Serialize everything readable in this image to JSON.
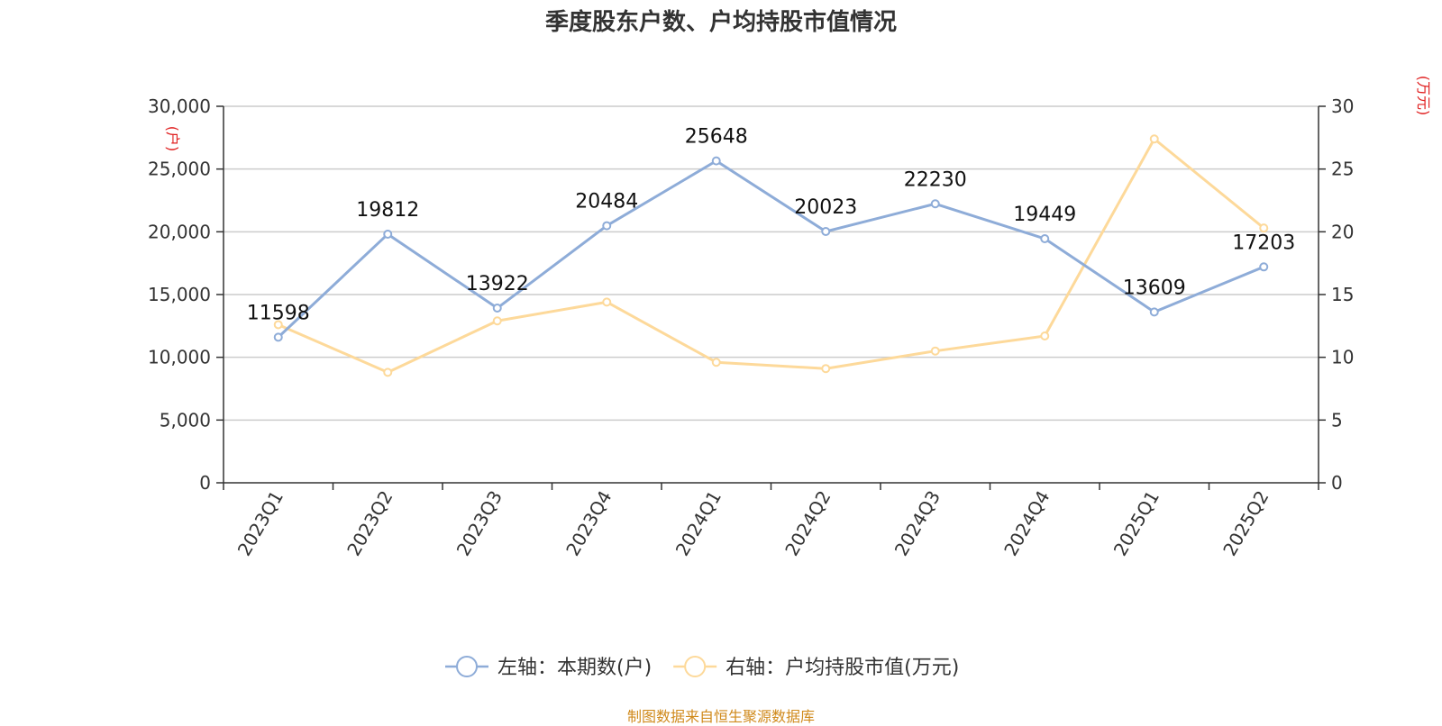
{
  "title": "季度股东户数、户均持股市值情况",
  "source": "制图数据来自恒生聚源数据库",
  "chart_data": {
    "type": "line",
    "categories": [
      "2023Q1",
      "2023Q2",
      "2023Q3",
      "2023Q4",
      "2024Q1",
      "2024Q2",
      "2024Q3",
      "2024Q4",
      "2025Q1",
      "2025Q2"
    ],
    "left_axis": {
      "unit": "(户)",
      "range": [
        0,
        30000
      ],
      "ticks": [
        0,
        5000,
        10000,
        15000,
        20000,
        25000,
        30000
      ],
      "tick_labels": [
        "0",
        "5,000",
        "10,000",
        "15,000",
        "20,000",
        "25,000",
        "30,000"
      ]
    },
    "right_axis": {
      "unit": "(万元)",
      "range": [
        0,
        30
      ],
      "ticks": [
        0,
        5,
        10,
        15,
        20,
        25,
        30
      ],
      "tick_labels": [
        "0",
        "5",
        "10",
        "15",
        "20",
        "25",
        "30"
      ]
    },
    "series": [
      {
        "name": "左轴：本期数(户)",
        "axis": "left",
        "color": "#8eacd8",
        "values": [
          11598,
          19812,
          13922,
          20484,
          25648,
          20023,
          22230,
          19449,
          13609,
          17203
        ],
        "labels": [
          "11598",
          "19812",
          "13922",
          "20484",
          "25648",
          "20023",
          "22230",
          "19449",
          "13609",
          "17203"
        ]
      },
      {
        "name": "右轴：户均持股市值(万元)",
        "axis": "right",
        "color": "#fdd99a",
        "values": [
          12.6,
          8.8,
          12.9,
          14.4,
          9.6,
          9.1,
          10.5,
          11.7,
          27.4,
          20.3
        ]
      }
    ],
    "grid": true,
    "legend_position": "bottom-center"
  }
}
